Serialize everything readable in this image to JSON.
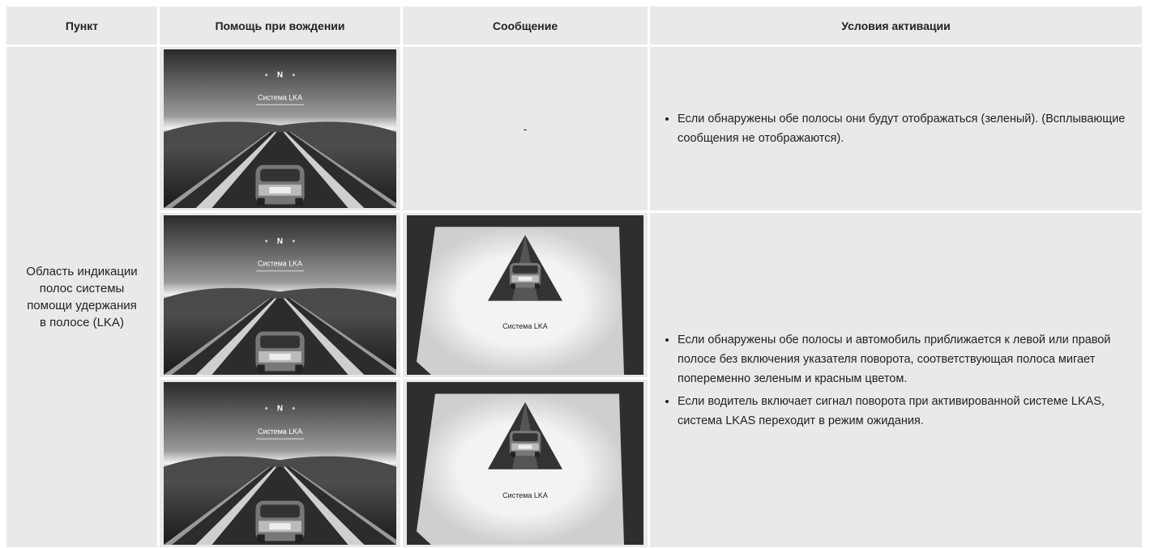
{
  "table": {
    "header": [
      "Пункт",
      "Помощь при вождении",
      "Сообщение",
      "Условия активации"
    ],
    "item": "Область индикации полос системы помощи удержания в полосе (LKA)",
    "screen_texts": {
      "gear": "N",
      "system": "Система LKA"
    },
    "first_row": {
      "message": "-",
      "conditions": [
        "Если обнаружены обе полосы они будут отображаться (зеленый). (Всплывающие сообщения не отображаются)."
      ]
    },
    "second_group": {
      "conditions": [
        "Если обнаружены обе полосы и автомобиль приближается к левой или правой полосе без включения указателя поворота, соответствующая полоса мигает попеременно зеленым и красным цветом.",
        "Если водитель включает сигнал поворота при активированной системе LKAS, система LKAS переходит в режим ожидания."
      ]
    }
  }
}
